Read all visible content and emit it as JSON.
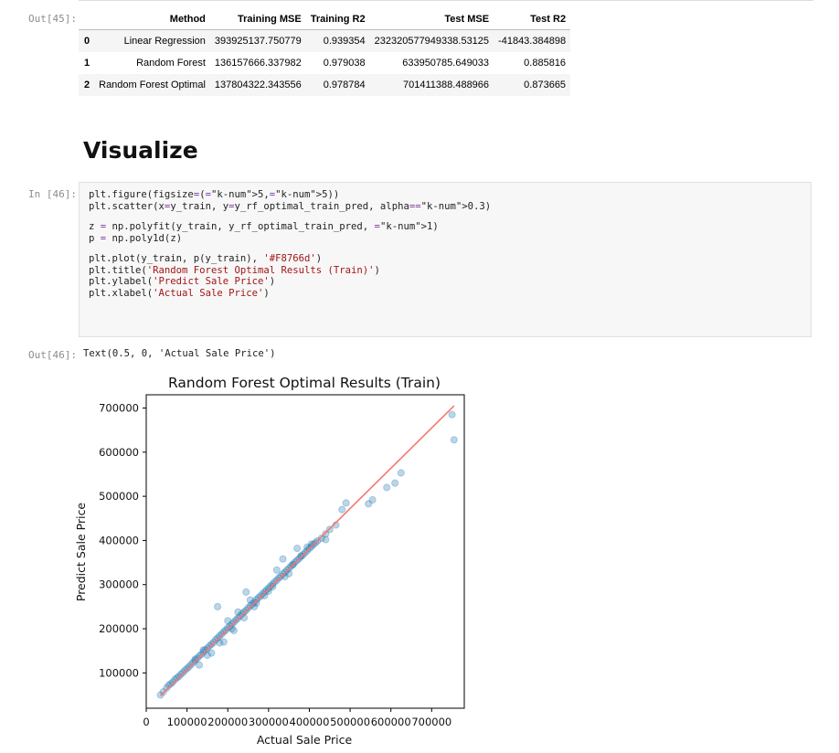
{
  "prompts": {
    "out45": "Out[45]:",
    "in46": "In [46]:",
    "out46": "Out[46]:"
  },
  "table": {
    "columns": [
      "",
      "Method",
      "Training MSE",
      "Training R2",
      "Test MSE",
      "Test R2"
    ],
    "rows": [
      [
        "0",
        "Linear Regression",
        "393925137.750779",
        "0.939354",
        "232320577949338.53125",
        "-41843.384898"
      ],
      [
        "1",
        "Random Forest",
        "136157666.337982",
        "0.979038",
        "633950785.649033",
        "0.885816"
      ],
      [
        "2",
        "Random Forest Optimal",
        "137804322.343556",
        "0.978784",
        "701411388.488966",
        "0.873665"
      ]
    ]
  },
  "heading": "Visualize",
  "code": [
    "plt.figure(figsize=(5,5))",
    "plt.scatter(x=y_train, y=y_rf_optimal_train_pred, alpha=0.3)",
    "",
    "z = np.polyfit(y_train, y_rf_optimal_train_pred, 1)",
    "p = np.poly1d(z)",
    "",
    "plt.plot(y_train, p(y_train), '#F8766d')",
    "plt.title('Random Forest Optimal Results (Train)')",
    "plt.ylabel('Predict Sale Price')",
    "plt.xlabel('Actual Sale Price')"
  ],
  "output_text": "Text(0.5, 0, 'Actual Sale Price')",
  "chart_data": {
    "type": "scatter",
    "title": "Random Forest Optimal Results (Train)",
    "xlabel": "Actual Sale Price",
    "ylabel": "Predict Sale Price",
    "xlim": [
      0,
      780000
    ],
    "ylim": [
      20000,
      730000
    ],
    "x_ticks": [
      0,
      100000,
      200000,
      300000,
      400000,
      500000,
      600000,
      700000
    ],
    "x_tick_labels": [
      "0",
      "100000",
      "200000",
      "300000",
      "400000",
      "500000",
      "600000",
      "700000"
    ],
    "y_ticks": [
      100000,
      200000,
      300000,
      400000,
      500000,
      600000,
      700000
    ],
    "y_tick_labels": [
      "100000",
      "200000",
      "300000",
      "400000",
      "500000",
      "600000",
      "700000"
    ],
    "point_color": "#1f77b4",
    "point_alpha": 0.3,
    "line_color": "#F8766d",
    "fit_line": {
      "x": [
        35000,
        755000
      ],
      "y": [
        48000,
        705000
      ]
    },
    "points": {
      "x": [
        35000,
        42000,
        50000,
        55000,
        60000,
        65000,
        70000,
        75000,
        80000,
        85000,
        90000,
        95000,
        100000,
        105000,
        110000,
        115000,
        120000,
        125000,
        130000,
        135000,
        140000,
        145000,
        150000,
        155000,
        160000,
        165000,
        170000,
        175000,
        180000,
        185000,
        190000,
        195000,
        200000,
        205000,
        210000,
        215000,
        220000,
        225000,
        230000,
        235000,
        240000,
        245000,
        250000,
        255000,
        260000,
        265000,
        270000,
        275000,
        280000,
        285000,
        290000,
        295000,
        300000,
        305000,
        310000,
        315000,
        320000,
        325000,
        330000,
        335000,
        340000,
        345000,
        350000,
        355000,
        360000,
        365000,
        370000,
        375000,
        380000,
        385000,
        390000,
        395000,
        400000,
        405000,
        410000,
        415000,
        420000,
        430000,
        440000,
        450000,
        465000,
        480000,
        490000,
        545000,
        555000,
        590000,
        610000,
        625000,
        750000,
        755000,
        160000,
        175000,
        190000,
        210000,
        245000,
        255000,
        265000,
        300000,
        340000,
        350000,
        335000,
        290000,
        215000,
        225000,
        180000,
        200000,
        120000,
        130000,
        140000,
        150000,
        240000,
        270000,
        310000,
        320000,
        360000,
        370000,
        380000,
        395000,
        405000,
        440000
      ],
      "y": [
        50000,
        57000,
        66000,
        72000,
        75000,
        79000,
        85000,
        89000,
        92000,
        97000,
        101000,
        106000,
        110000,
        114000,
        119000,
        124000,
        128000,
        133000,
        138000,
        142000,
        147000,
        152000,
        156000,
        161000,
        165000,
        169000,
        175000,
        179000,
        184000,
        188000,
        193000,
        197000,
        202000,
        206000,
        211000,
        215000,
        220000,
        224000,
        229000,
        234000,
        238000,
        242000,
        247000,
        252000,
        256000,
        260000,
        266000,
        270000,
        274000,
        279000,
        283000,
        288000,
        292000,
        297000,
        301000,
        306000,
        310000,
        315000,
        319000,
        324000,
        328000,
        333000,
        337000,
        342000,
        346000,
        351000,
        355000,
        359000,
        364000,
        368000,
        373000,
        377000,
        382000,
        386000,
        391000,
        395000,
        399000,
        405000,
        415000,
        425000,
        435000,
        470000,
        485000,
        483000,
        492000,
        520000,
        530000,
        553000,
        685000,
        628000,
        145000,
        250000,
        170000,
        200000,
        283000,
        265000,
        250000,
        285000,
        318000,
        325000,
        358000,
        275000,
        196000,
        238000,
        168000,
        218000,
        131000,
        118000,
        152000,
        140000,
        225000,
        258000,
        295000,
        333000,
        345000,
        382000,
        365000,
        385000,
        392000,
        402000
      ]
    }
  }
}
